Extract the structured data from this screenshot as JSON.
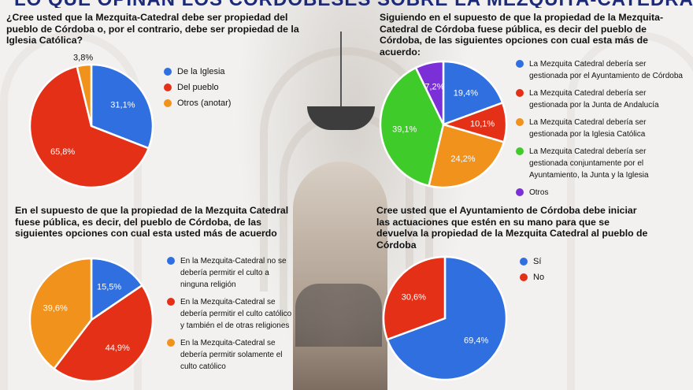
{
  "header": {
    "title": "LO QUE OPINAN LOS CORDOBESES SOBRE LA MEZQUITA-CATEDRAL"
  },
  "chart_data": [
    {
      "type": "pie",
      "title": "¿Cree usted que la Mezquita-Catedral debe ser propiedad del pueblo de Córdoba o, por el contrario, debe ser propiedad de la Iglesia Católica?",
      "categories": [
        "De la Iglesia",
        "Del pueblo",
        "Otros (anotar)"
      ],
      "values": [
        31.1,
        65.8,
        3.8
      ],
      "labels": [
        "31,1%",
        "65,8%",
        "3,8%"
      ],
      "colors": [
        "#2f6fe0",
        "#e53018",
        "#f0921c"
      ],
      "legend": "right"
    },
    {
      "type": "pie",
      "title": "Siguiendo en el supuesto de que la propiedad de la Mezquita-Catedral de Córdoba fuese pública, es decir del pueblo de Córdoba, de las siguientes opciones con cual esta más de acuerdo:",
      "categories": [
        "La Mezquita Catedral debería ser gestionada por el Ayuntamiento de Córdoba",
        "La Mezquita Catedral debería ser gestionada por la Junta de Andalucía",
        "La Mezquita Catedral debería ser gestionada por la Iglesia Católica",
        "La Mezquita Catedral debería ser gestionada conjuntamente por el Ayuntamiento, la Junta y la Iglesia",
        "Otros"
      ],
      "values": [
        19.4,
        10.1,
        24.2,
        39.1,
        7.2
      ],
      "labels": [
        "19,4%",
        "10,1%",
        "24,2%",
        "39,1%",
        "7,2%"
      ],
      "colors": [
        "#2f6fe0",
        "#e53018",
        "#f0921c",
        "#3fcc2b",
        "#7b2fd6"
      ],
      "legend": "right"
    },
    {
      "type": "pie",
      "title": "En el supuesto de que la propiedad de la Mezquita Catedral fuese pública, es decir, del pueblo de Córdoba, de las siguientes opciones con cual esta usted más de acuerdo",
      "categories": [
        "En la Mezquita-Catedral no se debería permitir el culto a ninguna religión",
        "En la Mezquita-Catedral se debería permitir el culto católico y también el de otras religiones",
        "En la Mezquita-Catedral se debería permitir solamente el culto católico"
      ],
      "values": [
        15.5,
        44.9,
        39.6
      ],
      "labels": [
        "15,5%",
        "44,9%",
        "39,6%"
      ],
      "colors": [
        "#2f6fe0",
        "#e53018",
        "#f0921c"
      ],
      "legend": "right"
    },
    {
      "type": "pie",
      "title": "Cree usted que el Ayuntamiento de Córdoba debe iniciar las actuaciones que estén en su mano para que se devuelva la propiedad de la Mezquita Catedral al pueblo de Córdoba",
      "categories": [
        "Sí",
        "No"
      ],
      "values": [
        69.4,
        30.6
      ],
      "labels": [
        "69,4%",
        "30,6%"
      ],
      "colors": [
        "#2f6fe0",
        "#e53018"
      ],
      "legend": "top-right"
    }
  ]
}
